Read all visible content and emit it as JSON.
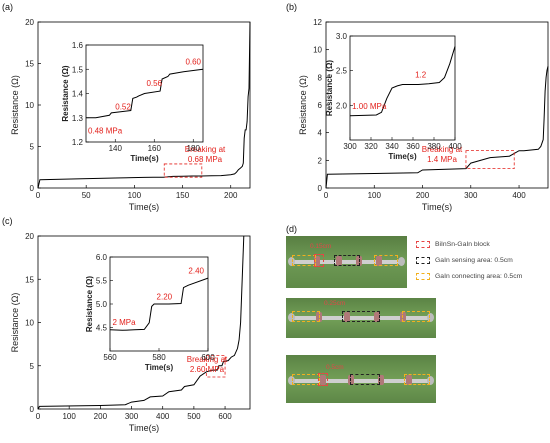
{
  "chart_data": [
    {
      "type": "line",
      "panel": "(a)",
      "xlabel": "Time(s)",
      "ylabel": "Resistance (Ω)",
      "xlim": [
        0,
        220
      ],
      "ylim": [
        0,
        20
      ],
      "xticks": [
        0,
        50,
        100,
        150,
        200
      ],
      "yticks": [
        0,
        5,
        10,
        15,
        20
      ],
      "series": [
        {
          "x": [
            0,
            2,
            40,
            80,
            110,
            120,
            130,
            140,
            150,
            160,
            170,
            180,
            190,
            200,
            204,
            206,
            208,
            210,
            212,
            213,
            214,
            215,
            216,
            217,
            218,
            219,
            220
          ],
          "y": [
            0.0,
            1.0,
            1.1,
            1.2,
            1.28,
            1.3,
            1.3,
            1.4,
            1.42,
            1.44,
            1.45,
            1.48,
            1.5,
            1.6,
            1.7,
            1.9,
            2.2,
            2.4,
            2.6,
            3.0,
            6.0,
            7.0,
            7.0,
            8.0,
            11.0,
            12.0,
            20.0
          ]
        }
      ],
      "annotation": "Breaking at\n0.68 MPa",
      "inset": {
        "xlabel": "Time(s)",
        "ylabel": "Resistance (Ω)",
        "xlim": [
          125,
          185
        ],
        "ylim": [
          1.2,
          1.6
        ],
        "xticks": [
          140,
          160,
          180
        ],
        "yticks": [
          1.2,
          1.3,
          1.4,
          1.5,
          1.6
        ],
        "x": [
          125,
          130,
          137,
          138,
          148,
          149,
          151,
          152,
          155,
          163,
          164,
          167,
          168,
          175,
          185
        ],
        "y": [
          1.3,
          1.3,
          1.31,
          1.32,
          1.33,
          1.38,
          1.385,
          1.39,
          1.4,
          1.41,
          1.46,
          1.47,
          1.48,
          1.49,
          1.5
        ],
        "labels": [
          {
            "text": "0.48 MPa",
            "x": 126,
            "y": 1.235
          },
          {
            "text": "0.52",
            "x": 140,
            "y": 1.335
          },
          {
            "text": "0.56",
            "x": 156,
            "y": 1.43
          },
          {
            "text": "0.60",
            "x": 176,
            "y": 1.52
          }
        ]
      }
    },
    {
      "type": "line",
      "panel": "(b)",
      "xlabel": "Time(s)",
      "ylabel": "Resistance (Ω)",
      "xlim": [
        0,
        460
      ],
      "ylim": [
        0,
        12
      ],
      "xticks": [
        0,
        100,
        200,
        300,
        400
      ],
      "yticks": [
        0,
        2,
        4,
        6,
        8,
        10,
        12
      ],
      "series": [
        {
          "x": [
            0,
            3,
            100,
            190,
            200,
            290,
            300,
            340,
            380,
            400,
            410,
            440,
            445,
            450,
            452,
            454,
            456,
            458,
            460
          ],
          "y": [
            0.0,
            1.0,
            1.05,
            1.1,
            1.3,
            1.4,
            1.8,
            2.2,
            2.3,
            2.7,
            2.7,
            2.8,
            3.0,
            3.5,
            5.0,
            7.0,
            8.0,
            8.5,
            8.8
          ]
        }
      ],
      "annotation": "Breaking at\n1.4 MPa",
      "inset": {
        "xlabel": "Time(s)",
        "ylabel": "Resistance (Ω)",
        "xlim": [
          300,
          400
        ],
        "ylim": [
          1.5,
          3.0
        ],
        "xticks": [
          300,
          320,
          340,
          360,
          380,
          400
        ],
        "yticks": [
          2.0,
          2.5,
          3.0
        ],
        "x": [
          300,
          325,
          330,
          335,
          340,
          345,
          350,
          365,
          375,
          385,
          390,
          395,
          400
        ],
        "y": [
          1.85,
          1.86,
          1.9,
          2.1,
          2.25,
          2.28,
          2.3,
          2.3,
          2.31,
          2.33,
          2.4,
          2.6,
          2.85
        ],
        "labels": [
          {
            "text": "1.00 MPa",
            "x": 302,
            "y": 1.95
          },
          {
            "text": "1.2",
            "x": 362,
            "y": 2.4
          }
        ]
      }
    },
    {
      "type": "line",
      "panel": "(c)",
      "xlabel": "Time(s)",
      "ylabel": "Resistance (Ω)",
      "xlim": [
        0,
        680
      ],
      "ylim": [
        0,
        20
      ],
      "xticks": [
        0,
        100,
        200,
        300,
        400,
        500,
        600
      ],
      "yticks": [
        0,
        5,
        10,
        15,
        20
      ],
      "series": [
        {
          "x": [
            0,
            5,
            200,
            280,
            300,
            340,
            360,
            400,
            420,
            460,
            470,
            500,
            520,
            540,
            560,
            575,
            580,
            590,
            595,
            610,
            620,
            630,
            640,
            645,
            650,
            655,
            660
          ],
          "y": [
            0.0,
            0.3,
            0.4,
            0.5,
            0.8,
            1.0,
            1.4,
            1.5,
            2.0,
            2.2,
            2.6,
            2.8,
            3.8,
            4.3,
            4.5,
            4.5,
            5.0,
            5.0,
            5.5,
            5.6,
            6.0,
            6.2,
            7.0,
            8.0,
            10.0,
            15.0,
            20.0
          ]
        }
      ],
      "annotation": "Breaking at\n2.60 MPa",
      "inset": {
        "xlabel": "Time(s)",
        "ylabel": "Resistance (Ω)",
        "xlim": [
          560,
          600
        ],
        "ylim": [
          4.0,
          6.0
        ],
        "xticks": [
          560,
          580,
          600
        ],
        "yticks": [
          4.5,
          5.0,
          5.5,
          6.0
        ],
        "x": [
          560,
          565,
          570,
          574,
          576,
          577,
          578,
          584,
          589,
          590,
          592,
          600
        ],
        "y": [
          4.45,
          4.44,
          4.45,
          4.46,
          4.6,
          4.95,
          5.0,
          5.0,
          5.01,
          5.35,
          5.4,
          5.55
        ],
        "labels": [
          {
            "text": "2 MPa",
            "x": 561,
            "y": 4.55
          },
          {
            "text": "2.20",
            "x": 579,
            "y": 5.1
          },
          {
            "text": "2.40",
            "x": 592,
            "y": 5.65
          }
        ]
      }
    }
  ],
  "panel_d": {
    "label": "(d)",
    "legend": [
      {
        "text": "BiInSn-GaIn block",
        "color": "#e84545"
      },
      {
        "text": "GaIn sensing area: 0.5cm",
        "color": "#222222"
      },
      {
        "text": "GaIn connecting area: 0.5cm",
        "color": "#f2b01e"
      }
    ],
    "photo_labels": [
      "0.15cm",
      "0.25cm",
      "0.5cm"
    ]
  }
}
